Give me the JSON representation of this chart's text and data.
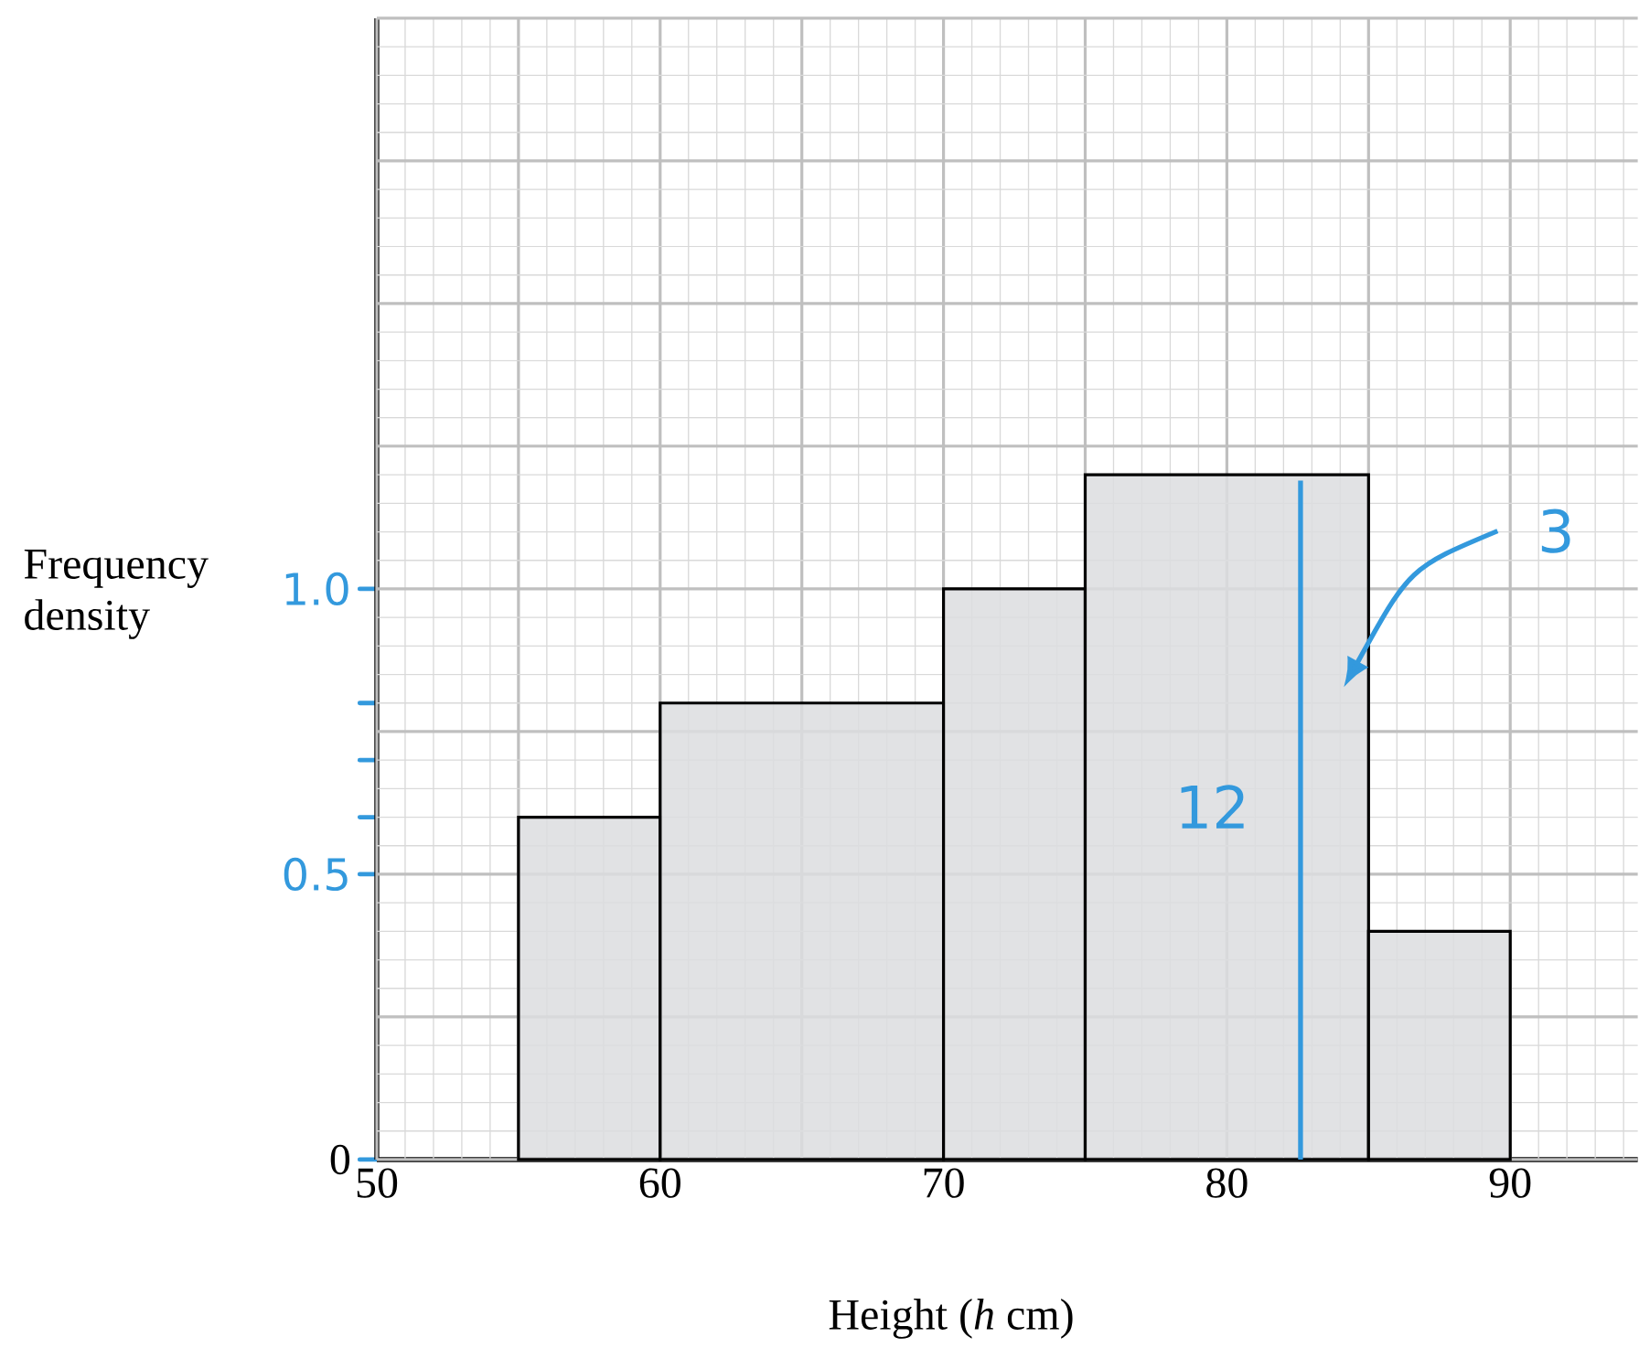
{
  "chart_data": {
    "type": "histogram",
    "xlabel": "Height (*h* cm)",
    "ylabel": "Frequency density",
    "bins": [
      55,
      60,
      70,
      75,
      85,
      90
    ],
    "values": [
      0.6,
      0.8,
      1.0,
      1.2,
      0.4
    ],
    "color": "#dcdddf",
    "xlim": [
      50,
      94.5
    ],
    "ylim": [
      0,
      2.0
    ],
    "xticks": [
      50,
      60,
      70,
      80,
      90
    ],
    "yticks": [
      0,
      0.5,
      {
        "value": 0.6,
        "label": null
      },
      {
        "value": 0.7,
        "label": null
      },
      {
        "value": 0.8,
        "label": null
      },
      {
        "value": 1.0,
        "label": "1.0"
      }
    ],
    "grid": true,
    "ref_lines": [
      {
        "axis": "x",
        "value": 82.6,
        "color": "#3399dd"
      }
    ],
    "annotations": [
      "12",
      "3"
    ]
  }
}
